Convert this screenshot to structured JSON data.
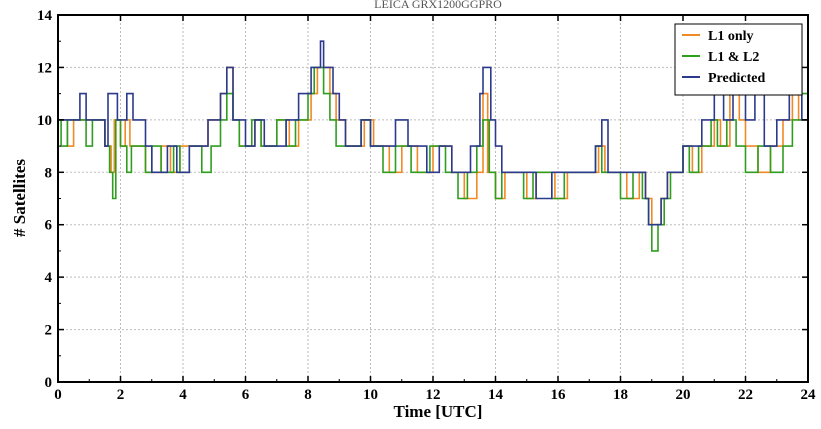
{
  "chart_data": {
    "type": "line",
    "title": "LEICA GRX1200GGPRO",
    "xlabel": "Time [UTC]",
    "ylabel": "# Satellites",
    "xlim": [
      0,
      24
    ],
    "ylim": [
      0,
      14
    ],
    "x_ticks": [
      0,
      2,
      4,
      6,
      8,
      10,
      12,
      14,
      16,
      18,
      20,
      22,
      24
    ],
    "y_ticks": [
      0,
      2,
      4,
      6,
      8,
      10,
      12,
      14
    ],
    "grid": true,
    "legend_position": "top-right",
    "series": [
      {
        "name": "L1 only",
        "color": "#f08a24",
        "step": true,
        "points": [
          [
            0,
            10
          ],
          [
            0.3,
            9
          ],
          [
            0.5,
            10
          ],
          [
            1.5,
            9
          ],
          [
            1.7,
            8
          ],
          [
            1.8,
            10
          ],
          [
            2.0,
            9
          ],
          [
            2.15,
            10
          ],
          [
            2.3,
            9
          ],
          [
            2.8,
            8
          ],
          [
            3.3,
            9
          ],
          [
            3.6,
            8
          ],
          [
            3.9,
            9
          ],
          [
            4.5,
            9
          ],
          [
            4.8,
            10
          ],
          [
            5.2,
            11
          ],
          [
            5.4,
            12
          ],
          [
            5.6,
            10
          ],
          [
            5.8,
            9
          ],
          [
            6.3,
            10
          ],
          [
            6.5,
            9
          ],
          [
            7.0,
            10
          ],
          [
            7.4,
            9
          ],
          [
            7.7,
            10
          ],
          [
            8.1,
            11
          ],
          [
            8.3,
            12
          ],
          [
            8.7,
            11
          ],
          [
            8.9,
            10
          ],
          [
            9.2,
            9
          ],
          [
            9.8,
            10
          ],
          [
            10.1,
            9
          ],
          [
            10.6,
            8
          ],
          [
            11.0,
            9
          ],
          [
            11.5,
            8
          ],
          [
            12.0,
            9
          ],
          [
            12.6,
            8
          ],
          [
            13.0,
            7
          ],
          [
            13.4,
            8
          ],
          [
            13.6,
            11
          ],
          [
            13.75,
            8
          ],
          [
            14.0,
            7
          ],
          [
            14.3,
            8
          ],
          [
            15.0,
            7
          ],
          [
            15.3,
            8
          ],
          [
            15.9,
            7
          ],
          [
            16.3,
            8
          ],
          [
            17.0,
            8
          ],
          [
            17.3,
            9
          ],
          [
            17.5,
            8
          ],
          [
            18.2,
            7
          ],
          [
            18.6,
            8
          ],
          [
            18.8,
            7
          ],
          [
            19.0,
            6
          ],
          [
            19.3,
            7
          ],
          [
            19.5,
            8
          ],
          [
            20.0,
            9
          ],
          [
            20.3,
            8
          ],
          [
            20.6,
            9
          ],
          [
            21.0,
            10
          ],
          [
            21.2,
            9
          ],
          [
            21.5,
            11
          ],
          [
            21.8,
            10
          ],
          [
            22.0,
            9
          ],
          [
            22.4,
            8
          ],
          [
            22.8,
            9
          ],
          [
            23.2,
            10
          ],
          [
            23.5,
            11
          ],
          [
            23.7,
            10
          ],
          [
            24.0,
            10
          ]
        ]
      },
      {
        "name": "L1 & L2",
        "color": "#2f9e1f",
        "step": true,
        "points": [
          [
            0,
            10
          ],
          [
            0.1,
            9
          ],
          [
            0.3,
            10
          ],
          [
            0.9,
            9
          ],
          [
            1.1,
            10
          ],
          [
            1.5,
            9
          ],
          [
            1.65,
            8
          ],
          [
            1.75,
            7
          ],
          [
            1.85,
            10
          ],
          [
            2.0,
            9
          ],
          [
            2.2,
            8
          ],
          [
            2.35,
            9
          ],
          [
            2.8,
            8
          ],
          [
            3.0,
            9
          ],
          [
            3.3,
            8
          ],
          [
            3.7,
            9
          ],
          [
            3.9,
            8
          ],
          [
            4.2,
            9
          ],
          [
            4.6,
            8
          ],
          [
            4.9,
            9
          ],
          [
            5.2,
            10
          ],
          [
            5.4,
            11
          ],
          [
            5.6,
            10
          ],
          [
            5.8,
            9
          ],
          [
            6.2,
            10
          ],
          [
            6.5,
            9
          ],
          [
            7.0,
            10
          ],
          [
            7.3,
            9
          ],
          [
            7.6,
            10
          ],
          [
            8.0,
            11
          ],
          [
            8.2,
            12
          ],
          [
            8.5,
            11
          ],
          [
            8.7,
            10
          ],
          [
            8.9,
            9
          ],
          [
            9.3,
            9
          ],
          [
            9.7,
            10
          ],
          [
            10.0,
            9
          ],
          [
            10.4,
            8
          ],
          [
            10.8,
            9
          ],
          [
            11.3,
            8
          ],
          [
            11.9,
            9
          ],
          [
            12.4,
            8
          ],
          [
            12.8,
            7
          ],
          [
            13.1,
            8
          ],
          [
            13.4,
            9
          ],
          [
            13.6,
            10
          ],
          [
            13.8,
            8
          ],
          [
            14.0,
            7
          ],
          [
            14.2,
            8
          ],
          [
            14.9,
            7
          ],
          [
            15.2,
            8
          ],
          [
            15.8,
            7
          ],
          [
            16.2,
            8
          ],
          [
            16.8,
            8
          ],
          [
            17.2,
            9
          ],
          [
            17.4,
            8
          ],
          [
            18.0,
            7
          ],
          [
            18.4,
            8
          ],
          [
            18.7,
            7
          ],
          [
            18.9,
            6
          ],
          [
            19.0,
            5
          ],
          [
            19.2,
            6
          ],
          [
            19.4,
            7
          ],
          [
            19.6,
            8
          ],
          [
            20.0,
            9
          ],
          [
            20.2,
            8
          ],
          [
            20.5,
            9
          ],
          [
            20.9,
            10
          ],
          [
            21.1,
            9
          ],
          [
            21.4,
            10
          ],
          [
            21.7,
            9
          ],
          [
            22.0,
            8
          ],
          [
            22.4,
            9
          ],
          [
            22.8,
            8
          ],
          [
            23.2,
            9
          ],
          [
            23.5,
            10
          ],
          [
            23.8,
            11
          ],
          [
            24.0,
            10
          ]
        ]
      },
      {
        "name": "Predicted",
        "color": "#2b3a8c",
        "step": true,
        "points": [
          [
            0,
            10
          ],
          [
            0.6,
            10
          ],
          [
            0.7,
            11
          ],
          [
            0.9,
            10
          ],
          [
            1.5,
            9
          ],
          [
            1.6,
            11
          ],
          [
            1.9,
            10
          ],
          [
            2.2,
            11
          ],
          [
            2.4,
            10
          ],
          [
            2.8,
            9
          ],
          [
            3.0,
            8
          ],
          [
            3.5,
            9
          ],
          [
            3.8,
            8
          ],
          [
            4.2,
            9
          ],
          [
            4.8,
            10
          ],
          [
            5.2,
            11
          ],
          [
            5.4,
            12
          ],
          [
            5.6,
            10
          ],
          [
            6.0,
            9
          ],
          [
            6.3,
            10
          ],
          [
            6.6,
            9
          ],
          [
            7.3,
            10
          ],
          [
            7.7,
            11
          ],
          [
            8.1,
            12
          ],
          [
            8.4,
            13
          ],
          [
            8.5,
            12
          ],
          [
            8.8,
            11
          ],
          [
            9.0,
            10
          ],
          [
            9.2,
            9
          ],
          [
            9.7,
            10
          ],
          [
            10.0,
            9
          ],
          [
            10.8,
            10
          ],
          [
            11.2,
            9
          ],
          [
            11.8,
            8
          ],
          [
            12.2,
            9
          ],
          [
            12.6,
            8
          ],
          [
            13.2,
            9
          ],
          [
            13.5,
            11
          ],
          [
            13.6,
            12
          ],
          [
            13.85,
            10
          ],
          [
            14.0,
            9
          ],
          [
            14.2,
            8
          ],
          [
            15.0,
            8
          ],
          [
            15.3,
            7
          ],
          [
            15.8,
            8
          ],
          [
            16.3,
            8
          ],
          [
            17.2,
            9
          ],
          [
            17.4,
            10
          ],
          [
            17.6,
            8
          ],
          [
            18.2,
            8
          ],
          [
            18.6,
            8
          ],
          [
            18.8,
            7
          ],
          [
            18.9,
            6
          ],
          [
            19.3,
            7
          ],
          [
            19.5,
            8
          ],
          [
            20.0,
            9
          ],
          [
            20.3,
            9
          ],
          [
            20.6,
            10
          ],
          [
            21.0,
            11
          ],
          [
            21.3,
            10
          ],
          [
            21.6,
            11
          ],
          [
            22.0,
            10
          ],
          [
            22.3,
            11
          ],
          [
            22.6,
            9
          ],
          [
            23.0,
            10
          ],
          [
            23.4,
            11
          ],
          [
            23.6,
            12
          ],
          [
            23.8,
            10
          ],
          [
            24.0,
            10
          ]
        ]
      }
    ]
  }
}
